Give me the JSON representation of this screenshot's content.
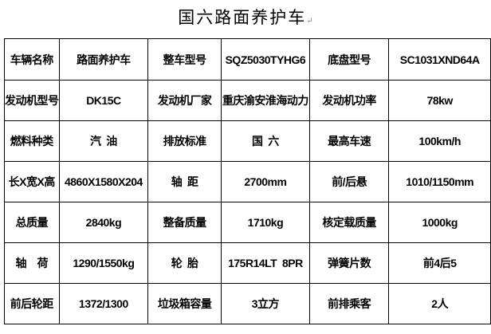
{
  "title": "国六路面养护车",
  "paragraph_mark": "↵",
  "rows": [
    [
      "车辆名称",
      "路面养护车",
      "整车型号",
      "SQZ5030TYHG6",
      "底盘型号",
      "SC1031XND64A"
    ],
    [
      "发动机型号",
      "DK15C",
      "发动机厂家",
      "重庆渝安淮海动力",
      "发动机功率",
      "78kw"
    ],
    [
      "燃料种类",
      "汽  油",
      "排放标准",
      "国  六",
      "最高车速",
      "100km/h"
    ],
    [
      "长X宽X高",
      "4860X1580X204",
      "轴  距",
      "2700mm",
      "前/后悬",
      "1010/1150mm"
    ],
    [
      "总质量",
      "2840kg",
      "整备质量",
      "1710kg",
      "核定载质量",
      "1000kg"
    ],
    [
      "轴    荷",
      "1290/1550kg",
      "轮  胎",
      "175R14LT  8PR",
      "弹簧片数",
      "前4后5"
    ],
    [
      "前后轮距",
      "1372/1300",
      "垃圾箱容量",
      "3立方",
      "前排乘客",
      "2人"
    ]
  ]
}
